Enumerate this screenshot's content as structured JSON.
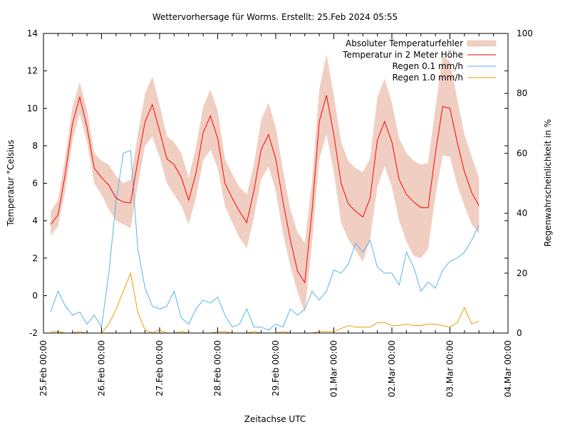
{
  "chart_data": {
    "type": "line",
    "title": "Wettervorhersage für Worms. Erstellt: 25.Feb 2024 05:55",
    "xlabel": "Zeitachse UTC",
    "ylabel": "Temperatur °Celsius",
    "y2label": "Regenwahrscheinlichkeit in %",
    "ylim": [
      -2,
      14
    ],
    "y2lim": [
      0,
      100
    ],
    "xlim_hours": [
      0,
      192
    ],
    "x_start": "25.Feb 2024 00:00",
    "x_step_hours": 3,
    "x_offset_hours": 3,
    "grid": false,
    "legend_position": "top-right",
    "yticks": [
      "-2",
      "0",
      "2",
      "4",
      "6",
      "8",
      "10",
      "12",
      "14"
    ],
    "y2ticks": [
      "0",
      "20",
      "40",
      "60",
      "80",
      "100"
    ],
    "xticks": [
      "25.Feb 00:00",
      "26.Feb 00:00",
      "27.Feb 00:00",
      "28.Feb 00:00",
      "29.Feb 00:00",
      "01.Mar 00:00",
      "02.Mar 00:00",
      "03.Mar 00:00",
      "04.Mar 00:00"
    ],
    "legend": [
      {
        "label": "Absoluter Temperaturfehler",
        "kind": "band",
        "color": "#f0cfc2"
      },
      {
        "label": "Temperatur in 2 Meter Höhe",
        "kind": "line",
        "color": "#ff0000"
      },
      {
        "label": "Regen 0.1 mm/h",
        "kind": "line",
        "color": "#56b4e9"
      },
      {
        "label": "Regen 1.0 mm/h",
        "kind": "line",
        "color": "#e69f00"
      }
    ],
    "series": [
      {
        "name": "Temperatur in 2 Meter Höhe",
        "axis": "y",
        "values": [
          3.8,
          4.3,
          6.5,
          9.2,
          10.6,
          9.0,
          6.8,
          6.3,
          5.9,
          5.2,
          5.0,
          4.95,
          7.2,
          9.3,
          10.2,
          8.8,
          7.3,
          7.0,
          6.3,
          5.1,
          6.5,
          8.7,
          9.6,
          8.4,
          6.0,
          5.2,
          4.5,
          3.9,
          5.6,
          7.8,
          8.6,
          7.3,
          5.0,
          3.0,
          1.3,
          0.7,
          4.5,
          9.3,
          10.7,
          8.6,
          6.0,
          4.9,
          4.5,
          4.2,
          5.2,
          8.3,
          9.3,
          8.2,
          6.2,
          5.4,
          5.0,
          4.7,
          4.7,
          7.6,
          10.1,
          10.0,
          8.2,
          6.6,
          5.5,
          4.8
        ]
      },
      {
        "name": "Absoluter Temperaturfehler (unten)",
        "axis": "y",
        "values": [
          3.2,
          3.7,
          5.6,
          8.3,
          9.7,
          8.2,
          6.0,
          5.4,
          4.6,
          4.0,
          3.8,
          3.6,
          5.9,
          8.0,
          8.5,
          7.4,
          6.0,
          5.4,
          4.8,
          3.8,
          5.2,
          7.2,
          7.8,
          6.8,
          4.8,
          3.9,
          3.1,
          2.5,
          4.2,
          6.2,
          6.9,
          5.6,
          3.3,
          1.6,
          0.2,
          -0.9,
          2.8,
          7.3,
          8.6,
          6.6,
          3.9,
          3.0,
          2.4,
          1.8,
          3.0,
          5.8,
          6.9,
          5.8,
          4.0,
          2.9,
          2.1,
          2.0,
          2.5,
          5.3,
          7.5,
          7.4,
          5.9,
          4.8,
          3.8,
          3.3
        ]
      },
      {
        "name": "Absoluter Temperaturfehler (oben)",
        "axis": "y",
        "values": [
          4.5,
          5.1,
          7.4,
          10.1,
          11.4,
          9.9,
          7.6,
          7.2,
          7.0,
          6.4,
          6.0,
          6.2,
          8.6,
          10.8,
          11.7,
          10.2,
          8.5,
          8.2,
          7.6,
          6.3,
          7.9,
          10.1,
          11.0,
          9.9,
          7.3,
          6.5,
          5.8,
          5.4,
          7.0,
          9.4,
          10.3,
          9.0,
          6.7,
          4.6,
          3.4,
          2.8,
          6.1,
          11.0,
          12.9,
          10.7,
          8.2,
          7.2,
          6.8,
          6.6,
          7.3,
          10.6,
          11.6,
          10.3,
          8.4,
          7.6,
          7.2,
          7.0,
          7.1,
          10.0,
          12.8,
          12.5,
          10.5,
          8.6,
          7.4,
          6.3
        ]
      },
      {
        "name": "Regen 0.1 mm/h",
        "axis": "y2",
        "values": [
          7,
          14,
          9,
          6,
          7,
          3,
          6,
          2,
          20,
          44,
          60,
          61,
          28,
          15,
          9,
          8,
          9,
          14,
          5,
          3,
          8,
          11,
          10,
          12,
          6,
          2,
          3,
          8,
          2,
          2,
          1,
          3,
          2,
          8,
          6,
          8,
          14,
          11,
          14,
          21,
          20,
          23,
          30,
          27,
          31,
          22,
          20,
          20,
          16,
          27,
          22,
          14,
          17,
          15,
          21,
          24,
          25,
          27,
          31,
          36
        ]
      },
      {
        "name": "Regen 1.0 mm/h",
        "axis": "y2",
        "values": [
          0.5,
          0.5,
          0,
          0,
          0.5,
          0,
          0,
          0,
          3,
          8,
          14,
          20,
          7,
          1,
          0,
          1,
          0,
          0,
          0.5,
          0,
          0,
          0,
          0,
          0.5,
          0.5,
          0,
          0,
          0,
          0.5,
          0,
          0,
          0,
          0.5,
          0,
          0,
          0,
          0,
          0.5,
          0.5,
          0.5,
          1.5,
          2.5,
          2,
          2,
          2,
          3.5,
          3.5,
          2.5,
          2.5,
          3,
          2.5,
          2.5,
          3,
          3,
          2.5,
          2,
          3.5,
          8.5,
          3.0,
          4.0
        ]
      }
    ]
  }
}
